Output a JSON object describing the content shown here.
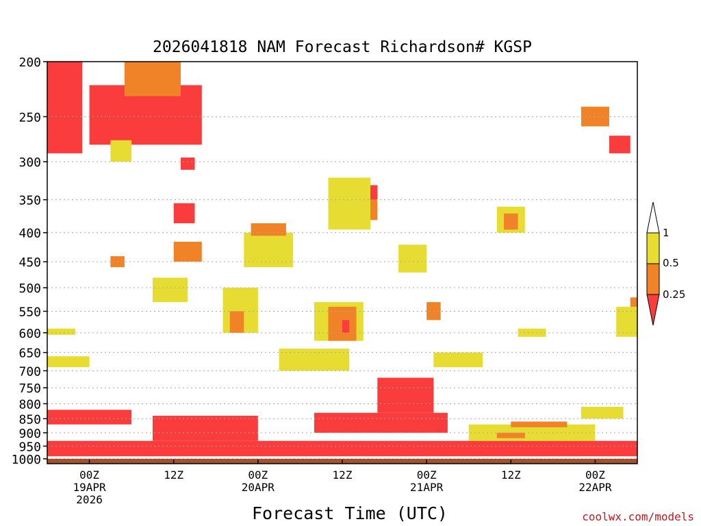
{
  "chart_data": {
    "type": "heatmap",
    "title": "2026041818 NAM Forecast Richardson# KGSP",
    "xlabel": "Forecast Time (UTC)",
    "ylabel": "",
    "credit": "coolwx.com/models",
    "x_ticks": [
      {
        "hour": 6,
        "lines": [
          "00Z",
          "19APR",
          "2026"
        ]
      },
      {
        "hour": 18,
        "lines": [
          "12Z"
        ]
      },
      {
        "hour": 30,
        "lines": [
          "00Z",
          "20APR"
        ]
      },
      {
        "hour": 42,
        "lines": [
          "12Z"
        ]
      },
      {
        "hour": 54,
        "lines": [
          "00Z",
          "21APR"
        ]
      },
      {
        "hour": 66,
        "lines": [
          "12Z"
        ]
      },
      {
        "hour": 78,
        "lines": [
          "00Z",
          "22APR"
        ]
      }
    ],
    "xlim": [
      0,
      84
    ],
    "y_ticks": [
      200,
      250,
      300,
      350,
      400,
      450,
      500,
      550,
      600,
      650,
      700,
      750,
      800,
      850,
      900,
      950,
      1000
    ],
    "ylim_hpa": [
      1020,
      200
    ],
    "y_scale": "log-pressure",
    "colorbar": {
      "labels": [
        "1",
        "0.5",
        "0.25"
      ],
      "bins": [
        {
          "range": "> 1",
          "color": "#ffffff"
        },
        {
          "range": "0.5–1",
          "color": "#e6dc32"
        },
        {
          "range": "0.25–0.5",
          "color": "#f08228"
        },
        {
          "range": "< 0.25",
          "color": "#fa3c3c"
        }
      ]
    },
    "ground_color": "#a0522d",
    "regions": [
      {
        "bin": "<0.25",
        "x": [
          0,
          5
        ],
        "p": [
          200,
          290
        ]
      },
      {
        "bin": "<0.25",
        "x": [
          6,
          22
        ],
        "p": [
          220,
          280
        ]
      },
      {
        "bin": "0.25-0.5",
        "x": [
          11,
          19
        ],
        "p": [
          200,
          230
        ]
      },
      {
        "bin": "0.5-1",
        "x": [
          9,
          12
        ],
        "p": [
          275,
          300
        ]
      },
      {
        "bin": "<0.25",
        "x": [
          18,
          21
        ],
        "p": [
          355,
          385
        ]
      },
      {
        "bin": "<0.25",
        "x": [
          19,
          21
        ],
        "p": [
          295,
          310
        ]
      },
      {
        "bin": "0.25-0.5",
        "x": [
          18,
          22
        ],
        "p": [
          415,
          450
        ]
      },
      {
        "bin": "0.5-1",
        "x": [
          28,
          35
        ],
        "p": [
          400,
          460
        ]
      },
      {
        "bin": "0.25-0.5",
        "x": [
          29,
          34
        ],
        "p": [
          385,
          405
        ]
      },
      {
        "bin": "0.25-0.5",
        "x": [
          42,
          47
        ],
        "p": [
          330,
          380
        ]
      },
      {
        "bin": "0.5-1",
        "x": [
          40,
          46
        ],
        "p": [
          320,
          395
        ]
      },
      {
        "bin": "<0.25",
        "x": [
          46,
          47
        ],
        "p": [
          330,
          350
        ]
      },
      {
        "bin": "0.5-1",
        "x": [
          38,
          45
        ],
        "p": [
          530,
          620
        ]
      },
      {
        "bin": "0.25-0.5",
        "x": [
          40,
          44
        ],
        "p": [
          540,
          620
        ]
      },
      {
        "bin": "<0.25",
        "x": [
          42,
          43
        ],
        "p": [
          570,
          600
        ]
      },
      {
        "bin": "0.5-1",
        "x": [
          25,
          30
        ],
        "p": [
          500,
          600
        ]
      },
      {
        "bin": "0.25-0.5",
        "x": [
          26,
          28
        ],
        "p": [
          550,
          600
        ]
      },
      {
        "bin": "0.5-1",
        "x": [
          0,
          6
        ],
        "p": [
          660,
          690
        ]
      },
      {
        "bin": "0.5-1",
        "x": [
          0,
          4
        ],
        "p": [
          590,
          605
        ]
      },
      {
        "bin": "0.5-1",
        "x": [
          15,
          20
        ],
        "p": [
          480,
          530
        ]
      },
      {
        "bin": "0.25-0.5",
        "x": [
          9,
          11
        ],
        "p": [
          440,
          460
        ]
      },
      {
        "bin": "0.5-1",
        "x": [
          50,
          54
        ],
        "p": [
          420,
          470
        ]
      },
      {
        "bin": "0.25-0.5",
        "x": [
          54,
          56
        ],
        "p": [
          530,
          570
        ]
      },
      {
        "bin": "0.5-1",
        "x": [
          33,
          43
        ],
        "p": [
          640,
          700
        ]
      },
      {
        "bin": "0.5-1",
        "x": [
          55,
          62
        ],
        "p": [
          650,
          690
        ]
      },
      {
        "bin": "<0.25",
        "x": [
          47,
          55
        ],
        "p": [
          720,
          830
        ]
      },
      {
        "bin": "<0.25",
        "x": [
          38,
          57
        ],
        "p": [
          830,
          900
        ]
      },
      {
        "bin": "<0.25",
        "x": [
          0,
          84
        ],
        "p": [
          930,
          990
        ]
      },
      {
        "bin": "<0.25",
        "x": [
          0,
          12
        ],
        "p": [
          820,
          870
        ]
      },
      {
        "bin": "<0.25",
        "x": [
          15,
          30
        ],
        "p": [
          840,
          930
        ]
      },
      {
        "bin": "0.5-1",
        "x": [
          60,
          78
        ],
        "p": [
          870,
          930
        ]
      },
      {
        "bin": "0.25-0.5",
        "x": [
          66,
          74
        ],
        "p": [
          860,
          880
        ]
      },
      {
        "bin": "0.25-0.5",
        "x": [
          64,
          68
        ],
        "p": [
          900,
          920
        ]
      },
      {
        "bin": "0.5-1",
        "x": [
          64,
          68
        ],
        "p": [
          360,
          400
        ]
      },
      {
        "bin": "0.25-0.5",
        "x": [
          65,
          67
        ],
        "p": [
          370,
          395
        ]
      },
      {
        "bin": "0.25-0.5",
        "x": [
          76,
          80
        ],
        "p": [
          240,
          260
        ]
      },
      {
        "bin": "<0.25",
        "x": [
          80,
          83
        ],
        "p": [
          270,
          290
        ]
      },
      {
        "bin": "0.5-1",
        "x": [
          76,
          82
        ],
        "p": [
          810,
          850
        ]
      },
      {
        "bin": "0.25-0.5",
        "x": [
          83,
          84
        ],
        "p": [
          520,
          560
        ]
      },
      {
        "bin": "0.5-1",
        "x": [
          81,
          84
        ],
        "p": [
          540,
          610
        ]
      },
      {
        "bin": "0.5-1",
        "x": [
          67,
          71
        ],
        "p": [
          590,
          610
        ]
      }
    ]
  }
}
